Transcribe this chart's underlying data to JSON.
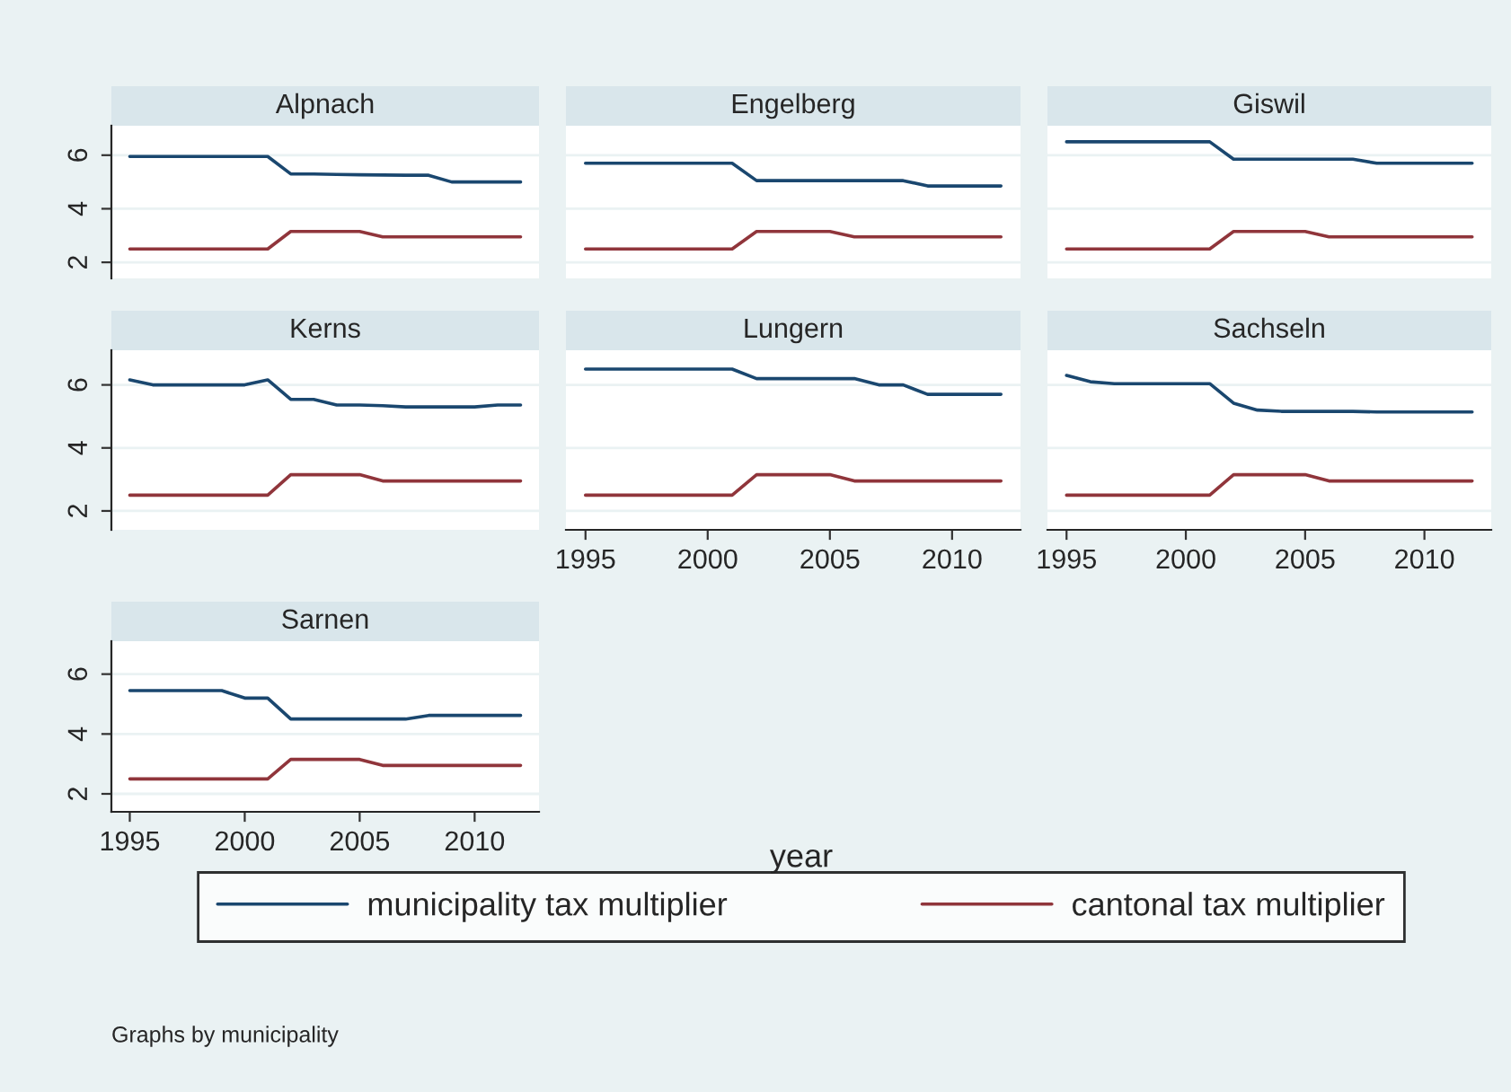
{
  "chart_data": [
    {
      "type": "line",
      "title": "Alpnach",
      "x": [
        1995,
        1996,
        1997,
        1998,
        1999,
        2000,
        2001,
        2002,
        2003,
        2004,
        2005,
        2006,
        2007,
        2008,
        2009,
        2010,
        2011,
        2012
      ],
      "xlim": [
        1994.2,
        2012.8
      ],
      "xticks": [
        1995,
        2000,
        2005,
        2010
      ],
      "ylim": [
        1.4,
        7.1
      ],
      "yticks": [
        2,
        4,
        6
      ],
      "grid": "y",
      "tick_labels": "y",
      "series": [
        {
          "color": "#1a476f",
          "values": [
            5.95,
            5.95,
            5.95,
            5.95,
            5.95,
            5.95,
            5.95,
            5.3,
            5.3,
            5.28,
            5.27,
            5.26,
            5.25,
            5.25,
            5.0,
            5.0,
            5.0,
            5.0
          ]
        },
        {
          "color": "#90353b",
          "values": [
            2.5,
            2.5,
            2.5,
            2.5,
            2.5,
            2.5,
            2.5,
            3.15,
            3.15,
            3.15,
            3.15,
            2.95,
            2.95,
            2.95,
            2.95,
            2.95,
            2.95,
            2.95
          ]
        }
      ]
    },
    {
      "type": "line",
      "title": "Engelberg",
      "x": [
        1995,
        1996,
        1997,
        1998,
        1999,
        2000,
        2001,
        2002,
        2003,
        2004,
        2005,
        2006,
        2007,
        2008,
        2009,
        2010,
        2011,
        2012
      ],
      "xlim": [
        1994.2,
        2012.8
      ],
      "xticks": [
        1995,
        2000,
        2005,
        2010
      ],
      "ylim": [
        1.4,
        7.1
      ],
      "yticks": [
        2,
        4,
        6
      ],
      "grid": "y",
      "tick_labels": false,
      "series": [
        {
          "color": "#1a476f",
          "values": [
            5.7,
            5.7,
            5.7,
            5.7,
            5.7,
            5.7,
            5.7,
            5.05,
            5.05,
            5.05,
            5.05,
            5.05,
            5.05,
            5.05,
            4.85,
            4.85,
            4.85,
            4.85
          ]
        },
        {
          "color": "#90353b",
          "values": [
            2.5,
            2.5,
            2.5,
            2.5,
            2.5,
            2.5,
            2.5,
            3.15,
            3.15,
            3.15,
            3.15,
            2.95,
            2.95,
            2.95,
            2.95,
            2.95,
            2.95,
            2.95
          ]
        }
      ]
    },
    {
      "type": "line",
      "title": "Giswil",
      "x": [
        1995,
        1996,
        1997,
        1998,
        1999,
        2000,
        2001,
        2002,
        2003,
        2004,
        2005,
        2006,
        2007,
        2008,
        2009,
        2010,
        2011,
        2012
      ],
      "xlim": [
        1994.2,
        2012.8
      ],
      "xticks": [
        1995,
        2000,
        2005,
        2010
      ],
      "ylim": [
        1.4,
        7.1
      ],
      "yticks": [
        2,
        4,
        6
      ],
      "grid": "y",
      "tick_labels": false,
      "series": [
        {
          "color": "#1a476f",
          "values": [
            6.5,
            6.5,
            6.5,
            6.5,
            6.5,
            6.5,
            6.5,
            5.85,
            5.85,
            5.85,
            5.85,
            5.85,
            5.85,
            5.7,
            5.7,
            5.7,
            5.7,
            5.7
          ]
        },
        {
          "color": "#90353b",
          "values": [
            2.5,
            2.5,
            2.5,
            2.5,
            2.5,
            2.5,
            2.5,
            3.15,
            3.15,
            3.15,
            3.15,
            2.95,
            2.95,
            2.95,
            2.95,
            2.95,
            2.95,
            2.95
          ]
        }
      ]
    },
    {
      "type": "line",
      "title": "Kerns",
      "x": [
        1995,
        1996,
        1997,
        1998,
        1999,
        2000,
        2001,
        2002,
        2003,
        2004,
        2005,
        2006,
        2007,
        2008,
        2009,
        2010,
        2011,
        2012
      ],
      "xlim": [
        1994.2,
        2012.8
      ],
      "xticks": [
        1995,
        2000,
        2005,
        2010
      ],
      "ylim": [
        1.4,
        7.1
      ],
      "yticks": [
        2,
        4,
        6
      ],
      "grid": "y",
      "tick_labels": "y",
      "series": [
        {
          "color": "#1a476f",
          "values": [
            6.16,
            6.0,
            6.0,
            6.0,
            6.0,
            6.0,
            6.16,
            5.54,
            5.54,
            5.36,
            5.36,
            5.34,
            5.3,
            5.3,
            5.3,
            5.3,
            5.36,
            5.36
          ]
        },
        {
          "color": "#90353b",
          "values": [
            2.5,
            2.5,
            2.5,
            2.5,
            2.5,
            2.5,
            2.5,
            3.15,
            3.15,
            3.15,
            3.15,
            2.95,
            2.95,
            2.95,
            2.95,
            2.95,
            2.95,
            2.95
          ]
        }
      ]
    },
    {
      "type": "line",
      "title": "Lungern",
      "x": [
        1995,
        1996,
        1997,
        1998,
        1999,
        2000,
        2001,
        2002,
        2003,
        2004,
        2005,
        2006,
        2007,
        2008,
        2009,
        2010,
        2011,
        2012
      ],
      "xlim": [
        1994.2,
        2012.8
      ],
      "xticks": [
        1995,
        2000,
        2005,
        2010
      ],
      "ylim": [
        1.4,
        7.1
      ],
      "yticks": [
        2,
        4,
        6
      ],
      "grid": "y",
      "tick_labels": "x",
      "series": [
        {
          "color": "#1a476f",
          "values": [
            6.5,
            6.5,
            6.5,
            6.5,
            6.5,
            6.5,
            6.5,
            6.2,
            6.2,
            6.2,
            6.2,
            6.2,
            6.0,
            6.0,
            5.7,
            5.7,
            5.7,
            5.7
          ]
        },
        {
          "color": "#90353b",
          "values": [
            2.5,
            2.5,
            2.5,
            2.5,
            2.5,
            2.5,
            2.5,
            3.15,
            3.15,
            3.15,
            3.15,
            2.95,
            2.95,
            2.95,
            2.95,
            2.95,
            2.95,
            2.95
          ]
        }
      ]
    },
    {
      "type": "line",
      "title": "Sachseln",
      "x": [
        1995,
        1996,
        1997,
        1998,
        1999,
        2000,
        2001,
        2002,
        2003,
        2004,
        2005,
        2006,
        2007,
        2008,
        2009,
        2010,
        2011,
        2012
      ],
      "xlim": [
        1994.2,
        2012.8
      ],
      "xticks": [
        1995,
        2000,
        2005,
        2010
      ],
      "ylim": [
        1.4,
        7.1
      ],
      "yticks": [
        2,
        4,
        6
      ],
      "grid": "y",
      "tick_labels": "x",
      "series": [
        {
          "color": "#1a476f",
          "values": [
            6.3,
            6.1,
            6.04,
            6.04,
            6.04,
            6.04,
            6.04,
            5.42,
            5.2,
            5.16,
            5.16,
            5.16,
            5.16,
            5.14,
            5.14,
            5.14,
            5.14,
            5.14
          ]
        },
        {
          "color": "#90353b",
          "values": [
            2.5,
            2.5,
            2.5,
            2.5,
            2.5,
            2.5,
            2.5,
            3.15,
            3.15,
            3.15,
            3.15,
            2.95,
            2.95,
            2.95,
            2.95,
            2.95,
            2.95,
            2.95
          ]
        }
      ]
    },
    {
      "type": "line",
      "title": "Sarnen",
      "x": [
        1995,
        1996,
        1997,
        1998,
        1999,
        2000,
        2001,
        2002,
        2003,
        2004,
        2005,
        2006,
        2007,
        2008,
        2009,
        2010,
        2011,
        2012
      ],
      "xlim": [
        1994.2,
        2012.8
      ],
      "xticks": [
        1995,
        2000,
        2005,
        2010
      ],
      "ylim": [
        1.4,
        7.1
      ],
      "yticks": [
        2,
        4,
        6
      ],
      "grid": "y",
      "legend": "bottom",
      "series": [
        {
          "name": "municipality tax multiplier",
          "color": "#1a476f",
          "values": [
            5.45,
            5.45,
            5.45,
            5.45,
            5.45,
            5.2,
            5.2,
            4.5,
            4.5,
            4.5,
            4.5,
            4.5,
            4.5,
            4.62,
            4.62,
            4.62,
            4.62,
            4.62
          ]
        },
        {
          "name": "cantonal tax multiplier",
          "color": "#90353b",
          "values": [
            2.5,
            2.5,
            2.5,
            2.5,
            2.5,
            2.5,
            2.5,
            3.15,
            3.15,
            3.15,
            3.15,
            2.95,
            2.95,
            2.95,
            2.95,
            2.95,
            2.95,
            2.95
          ]
        }
      ]
    },
    {
      "type": "other",
      "annotations": [
        "year",
        "Graphs by municipality"
      ]
    }
  ]
}
